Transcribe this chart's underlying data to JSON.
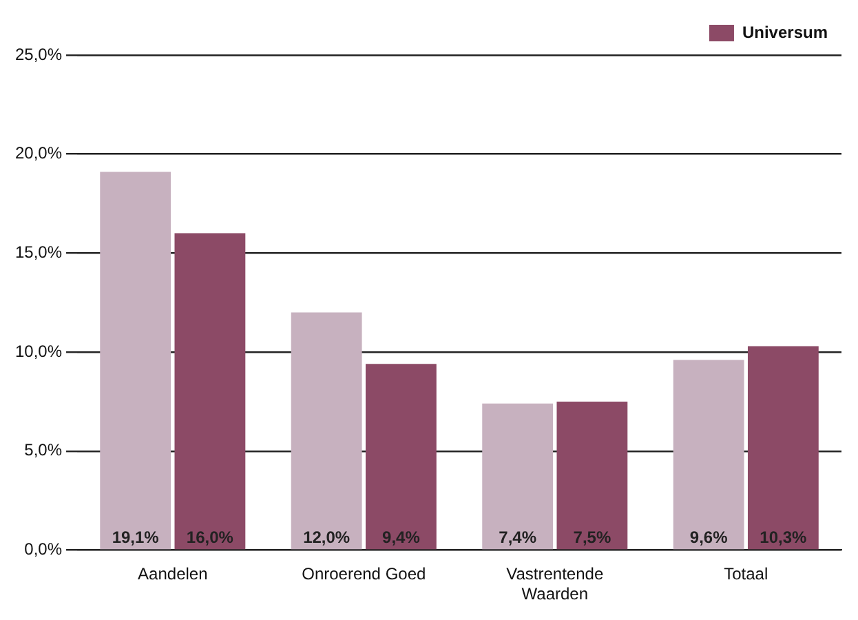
{
  "chart_data": {
    "type": "bar",
    "categories": [
      "Aandelen",
      "Onroerend Goed",
      "Vastrentende Waarden",
      "Totaal"
    ],
    "series": [
      {
        "color": "#c7b1bf",
        "values": [
          19.1,
          12.0,
          7.4,
          9.6
        ],
        "value_labels": [
          "19,1%",
          "12,0%",
          "7,4%",
          "9,6%"
        ]
      },
      {
        "name": "Universum",
        "color": "#8c4a66",
        "values": [
          16.0,
          9.4,
          7.5,
          10.3
        ],
        "value_labels": [
          "16,0%",
          "9,4%",
          "7,5%",
          "10,3%"
        ]
      }
    ],
    "ylim": [
      0,
      25
    ],
    "yticks": [
      {
        "value": 0,
        "label": "0,0%"
      },
      {
        "value": 5,
        "label": "5,0%"
      },
      {
        "value": 10,
        "label": "10,0%"
      },
      {
        "value": 15,
        "label": "15,0%"
      },
      {
        "value": 20,
        "label": "20,0%"
      },
      {
        "value": 25,
        "label": "25,0%"
      }
    ],
    "grid": "y",
    "legend": "top right"
  }
}
